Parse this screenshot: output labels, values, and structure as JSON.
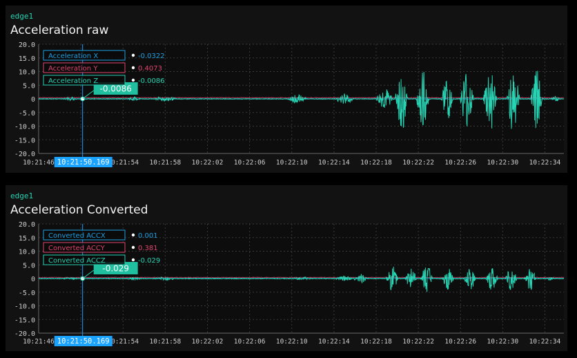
{
  "colors": {
    "x": "#1f9fe0",
    "y": "#e0456e",
    "z": "#27d3b3",
    "cursor": "#1aa3ff",
    "readout_bg": "#1fbfa0"
  },
  "panels": [
    {
      "device": "edge1",
      "title": "Acceleration raw",
      "cursor_time_label": "10:21:50.169",
      "readout_value": "-0.0086",
      "legend": [
        {
          "name": "Acceleration X",
          "value": "-0.0322",
          "color": "#1f9fe0"
        },
        {
          "name": "Acceleration Y",
          "value": "0.4073",
          "color": "#e0456e"
        },
        {
          "name": "Acceleration Z",
          "value": "-0.0086",
          "color": "#27d3b3"
        }
      ]
    },
    {
      "device": "edge1",
      "title": "Acceleration Converted",
      "cursor_time_label": "10:21:50.169",
      "readout_value": "-0.029",
      "legend": [
        {
          "name": "Converted ACCX",
          "value": "0.001",
          "color": "#1f9fe0"
        },
        {
          "name": "Converted ACCY",
          "value": "0.381",
          "color": "#e0456e"
        },
        {
          "name": "Converted ACCZ",
          "value": "-0.029",
          "color": "#27d3b3"
        }
      ]
    }
  ],
  "chart_data": [
    {
      "type": "line",
      "title": "Acceleration raw",
      "ylim": [
        -20,
        20
      ],
      "yticks": [
        "20.0",
        "15.0",
        "10.0",
        "5.0",
        "0",
        "-5.0",
        "-10.0",
        "-15.0",
        "-20.0"
      ],
      "xrange_seconds": [
        106,
        155.8
      ],
      "xticks": [
        {
          "t": 106,
          "label": "10:21:46"
        },
        {
          "t": 110,
          "label": "10:21:50"
        },
        {
          "t": 114,
          "label": "10:21:54"
        },
        {
          "t": 118,
          "label": "10:21:58"
        },
        {
          "t": 122,
          "label": "10:22:02"
        },
        {
          "t": 126,
          "label": "10:22:06"
        },
        {
          "t": 130,
          "label": "10:22:10"
        },
        {
          "t": 134,
          "label": "10:22:14"
        },
        {
          "t": 138,
          "label": "10:22:18"
        },
        {
          "t": 142,
          "label": "10:22:22"
        },
        {
          "t": 146,
          "label": "10:22:26"
        },
        {
          "t": 150,
          "label": "10:22:30"
        },
        {
          "t": 154,
          "label": "10:22:34"
        }
      ],
      "cursor_t": 110.169,
      "grid": true,
      "series": [
        {
          "name": "Acceleration X",
          "color": "#1f9fe0",
          "baseline": -0.03
        },
        {
          "name": "Acceleration Y",
          "color": "#e0456e",
          "baseline": 0.4
        },
        {
          "name": "Acceleration Z",
          "color": "#27d3b3",
          "baseline": -0.01,
          "bursts": [
            {
              "t": 109,
              "dur": 1.6,
              "amp": 0.6
            },
            {
              "t": 115,
              "dur": 1.5,
              "amp": 0.7
            },
            {
              "t": 118,
              "dur": 2.5,
              "amp": 0.9
            },
            {
              "t": 130.5,
              "dur": 2,
              "amp": 1.5
            },
            {
              "t": 135,
              "dur": 2,
              "amp": 2
            },
            {
              "t": 138.8,
              "dur": 1.8,
              "amp": 4
            },
            {
              "t": 140.4,
              "dur": 1.3,
              "amp": 12.5
            },
            {
              "t": 142.4,
              "dur": 1.3,
              "amp": 11
            },
            {
              "t": 144.7,
              "dur": 1.2,
              "amp": 9
            },
            {
              "t": 146.6,
              "dur": 1.4,
              "amp": 11.5
            },
            {
              "t": 148.8,
              "dur": 1.4,
              "amp": 13
            },
            {
              "t": 151,
              "dur": 1.3,
              "amp": 13
            },
            {
              "t": 153.2,
              "dur": 1.2,
              "amp": 11
            },
            {
              "t": 155,
              "dur": 0.8,
              "amp": 1
            }
          ]
        }
      ]
    },
    {
      "type": "line",
      "title": "Acceleration Converted",
      "ylim": [
        -20,
        20
      ],
      "yticks": [
        "20.0",
        "15.0",
        "10.0",
        "5.0",
        "0",
        "-5.0",
        "-10.0",
        "-15.0",
        "-20.0"
      ],
      "xrange_seconds": [
        106,
        155.8
      ],
      "xticks": [
        {
          "t": 106,
          "label": "10:21:46"
        },
        {
          "t": 110,
          "label": "10:21:50"
        },
        {
          "t": 114,
          "label": "10:21:54"
        },
        {
          "t": 118,
          "label": "10:21:58"
        },
        {
          "t": 122,
          "label": "10:22:02"
        },
        {
          "t": 126,
          "label": "10:22:06"
        },
        {
          "t": 130,
          "label": "10:22:10"
        },
        {
          "t": 134,
          "label": "10:22:14"
        },
        {
          "t": 138,
          "label": "10:22:18"
        },
        {
          "t": 142,
          "label": "10:22:22"
        },
        {
          "t": 146,
          "label": "10:22:26"
        },
        {
          "t": 150,
          "label": "10:22:30"
        },
        {
          "t": 154,
          "label": "10:22:34"
        }
      ],
      "cursor_t": 110.169,
      "grid": true,
      "series": [
        {
          "name": "Converted ACCX",
          "color": "#1f9fe0",
          "baseline": 0.0
        },
        {
          "name": "Converted ACCY",
          "color": "#e0456e",
          "baseline": 0.38
        },
        {
          "name": "Converted ACCZ",
          "color": "#27d3b3",
          "baseline": -0.03,
          "bursts": [
            {
              "t": 109,
              "dur": 1.6,
              "amp": 0.4
            },
            {
              "t": 115,
              "dur": 1.5,
              "amp": 0.4
            },
            {
              "t": 118,
              "dur": 2.5,
              "amp": 0.5
            },
            {
              "t": 131,
              "dur": 2,
              "amp": 0.6
            },
            {
              "t": 135,
              "dur": 2,
              "amp": 1
            },
            {
              "t": 136.5,
              "dur": 1.5,
              "amp": 2
            },
            {
              "t": 139.5,
              "dur": 1.3,
              "amp": 5
            },
            {
              "t": 141.3,
              "dur": 1.2,
              "amp": 4
            },
            {
              "t": 142.8,
              "dur": 1.2,
              "amp": 5.5
            },
            {
              "t": 144.8,
              "dur": 1.2,
              "amp": 4
            },
            {
              "t": 146.9,
              "dur": 1.2,
              "amp": 5
            },
            {
              "t": 149,
              "dur": 1.2,
              "amp": 5
            },
            {
              "t": 150.8,
              "dur": 1.2,
              "amp": 4.5
            },
            {
              "t": 152.6,
              "dur": 1.2,
              "amp": 4.5
            },
            {
              "t": 154.5,
              "dur": 0.8,
              "amp": 0.6
            }
          ]
        }
      ]
    }
  ]
}
